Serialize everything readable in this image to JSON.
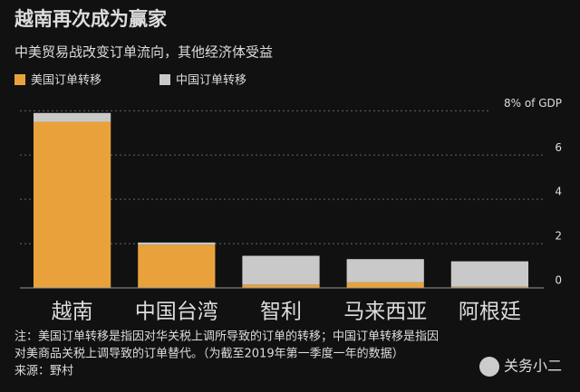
{
  "chart_data": {
    "type": "bar",
    "stacked": true,
    "title": "越南再次成为赢家",
    "subtitle": "中美贸易战改变订单流向，其他经济体受益",
    "categories": [
      "越南",
      "中国台湾",
      "智利",
      "马来西亚",
      "阿根廷"
    ],
    "series": [
      {
        "name": "美国订单转移",
        "color": "#e9a23b",
        "values": [
          7.5,
          1.95,
          0.15,
          0.25,
          0.05
        ]
      },
      {
        "name": "中国订单转移",
        "color": "#c9c9c9",
        "values": [
          0.4,
          0.1,
          1.3,
          1.05,
          1.15
        ]
      }
    ],
    "ylim": [
      0,
      8.3
    ],
    "yticks": [
      0,
      2,
      4,
      6,
      {
        "value": 8,
        "label": "8% of GDP"
      }
    ],
    "grid": true,
    "notes": [
      "注：美国订单转移是指因对华关税上调所导致的订单的转移；中国订单转移是指因",
      "对美商品关税上调导致的订单替代。（为截至2019年第一季度一年的数据）"
    ],
    "source": "来源：野村",
    "watermark": "关务小二"
  }
}
